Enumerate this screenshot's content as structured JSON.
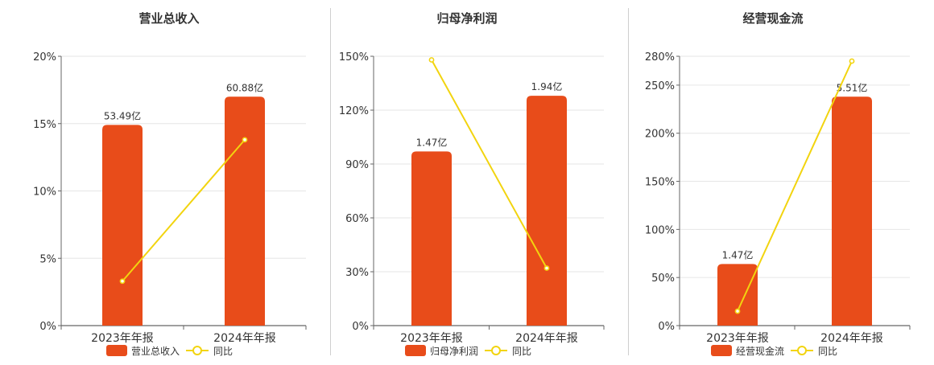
{
  "chart_data": [
    {
      "type": "bar",
      "title": "营业总收入",
      "categories": [
        "2023年年报",
        "2024年年报"
      ],
      "bar_series": {
        "name": "营业总收入",
        "values": [
          53.49,
          60.88
        ],
        "labels": [
          "53.49亿",
          "60.88亿"
        ],
        "color": "#E84C1A"
      },
      "line_series": {
        "name": "同比",
        "values": [
          3.3,
          13.8
        ],
        "color": "#F2D40F"
      },
      "y_ticks": [
        "0%",
        "5%",
        "10%",
        "15%",
        "20%"
      ],
      "ylim": [
        0,
        20
      ],
      "bar_pct_values": [
        14.9,
        17.0
      ],
      "grid": true,
      "legend": "bottom"
    },
    {
      "type": "bar",
      "title": "归母净利润",
      "categories": [
        "2023年年报",
        "2024年年报"
      ],
      "bar_series": {
        "name": "归母净利润",
        "values": [
          1.47,
          1.94
        ],
        "labels": [
          "1.47亿",
          "1.94亿"
        ],
        "color": "#E84C1A"
      },
      "line_series": {
        "name": "同比",
        "values": [
          148,
          32
        ],
        "color": "#F2D40F"
      },
      "y_ticks": [
        "0%",
        "30%",
        "60%",
        "90%",
        "120%",
        "150%"
      ],
      "ylim": [
        0,
        150
      ],
      "bar_pct_values": [
        97,
        128
      ],
      "grid": true,
      "legend": "bottom"
    },
    {
      "type": "bar",
      "title": "经营现金流",
      "categories": [
        "2023年年报",
        "2024年年报"
      ],
      "bar_series": {
        "name": "经营现金流",
        "values": [
          1.47,
          5.51
        ],
        "labels": [
          "1.47亿",
          "5.51亿"
        ],
        "color": "#E84C1A"
      },
      "line_series": {
        "name": "同比",
        "values": [
          15,
          275
        ],
        "color": "#F2D40F"
      },
      "y_ticks": [
        "0%",
        "50%",
        "100%",
        "150%",
        "200%",
        "250%",
        "280%"
      ],
      "ylim": [
        0,
        280
      ],
      "bar_pct_values": [
        64,
        238
      ],
      "grid": true,
      "legend": "bottom"
    }
  ]
}
